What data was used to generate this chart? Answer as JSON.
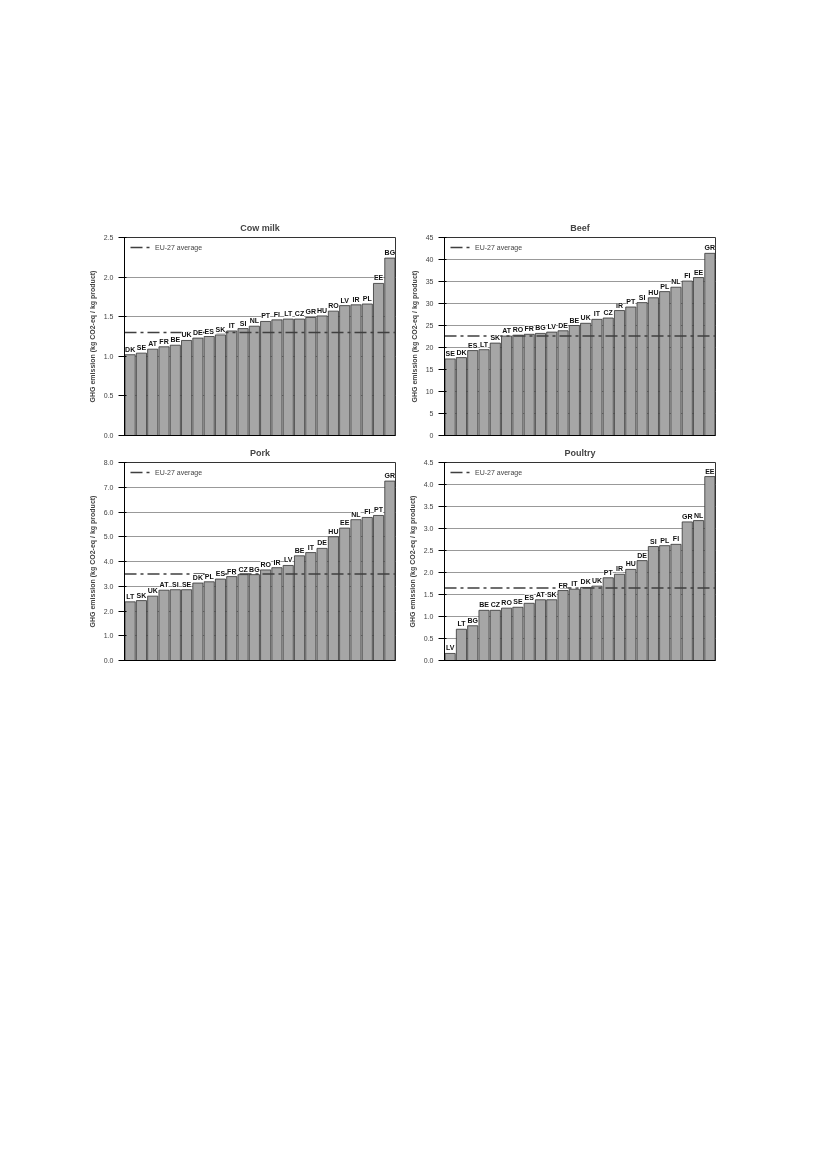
{
  "chart_data": [
    {
      "type": "bar",
      "title": "Cow milk",
      "ylabel": "GHG emission (kg CO2-eq / kg product)",
      "categories": [
        "DK",
        "SE",
        "AT",
        "FR",
        "BE",
        "UK",
        "DE",
        "ES",
        "SK",
        "IT",
        "SI",
        "NL",
        "PT",
        "FI",
        "LT",
        "CZ",
        "GR",
        "HU",
        "RO",
        "LV",
        "IR",
        "PL",
        "EE",
        "BG"
      ],
      "values": [
        1.02,
        1.04,
        1.09,
        1.12,
        1.14,
        1.2,
        1.23,
        1.25,
        1.27,
        1.32,
        1.35,
        1.38,
        1.44,
        1.46,
        1.47,
        1.47,
        1.49,
        1.51,
        1.57,
        1.64,
        1.65,
        1.66,
        1.92,
        2.24
      ],
      "color": "#a6a6a6",
      "ylim": [
        0,
        2.5
      ],
      "yticks": [
        {
          "value": 0,
          "label": "0.0"
        },
        0.5,
        {
          "value": 1,
          "label": "1.0"
        },
        1.5,
        {
          "value": 2,
          "label": "2.0"
        },
        2.5
      ],
      "ref_lines": [
        {
          "axis": "y",
          "value": 1.3,
          "label": "EU-27 average",
          "color": "#3f3f3f",
          "line_style": "dashed"
        }
      ],
      "grid": "y",
      "legend": "top left",
      "tick_labels": "y"
    },
    {
      "type": "bar",
      "title": "Beef",
      "ylabel": "GHG emission (kg CO2-eq / kg product)",
      "categories": [
        "SE",
        "DK",
        "ES",
        "LT",
        "SK",
        "AT",
        "RO",
        "FR",
        "BG",
        "LV",
        "DE",
        "BE",
        "UK",
        "IT",
        "CZ",
        "IR",
        "PT",
        "SI",
        "HU",
        "PL",
        "NL",
        "FI",
        "EE",
        "GR"
      ],
      "values": [
        17.4,
        17.7,
        19.3,
        19.5,
        21.0,
        22.6,
        22.8,
        23.0,
        23.2,
        23.5,
        23.8,
        25.0,
        25.5,
        26.4,
        26.7,
        28.4,
        29.2,
        30.2,
        31.3,
        32.7,
        33.7,
        35.1,
        35.9,
        41.4
      ],
      "color": "#a6a6a6",
      "ylim": [
        0,
        45
      ],
      "yticks": [
        0,
        5,
        10,
        15,
        20,
        25,
        30,
        35,
        40,
        45
      ],
      "ref_lines": [
        {
          "axis": "y",
          "value": 22.6,
          "label": "EU-27 average",
          "color": "#3f3f3f",
          "line_style": "dashed"
        }
      ],
      "grid": "y",
      "legend": "top left",
      "tick_labels": "y"
    },
    {
      "type": "bar",
      "title": "Pork",
      "ylabel": "GHG emission (kg CO2-eq / kg product)",
      "categories": [
        "LT",
        "SK",
        "UK",
        "AT",
        "SI",
        "SE",
        "DK",
        "PL",
        "ES",
        "FR",
        "CZ",
        "BG",
        "RO",
        "IR",
        "LV",
        "BE",
        "IT",
        "DE",
        "HU",
        "EE",
        "NL",
        "FI",
        "PT",
        "GR"
      ],
      "values": [
        2.37,
        2.42,
        2.6,
        2.84,
        2.86,
        2.86,
        3.13,
        3.18,
        3.29,
        3.39,
        3.47,
        3.47,
        3.66,
        3.75,
        3.84,
        4.23,
        4.36,
        4.53,
        5.0,
        5.35,
        5.69,
        5.78,
        5.86,
        7.25
      ],
      "color": "#a6a6a6",
      "ylim": [
        0,
        8
      ],
      "yticks": [
        {
          "value": 0,
          "label": "0.0"
        },
        {
          "value": 1,
          "label": "1.0"
        },
        {
          "value": 2,
          "label": "2.0"
        },
        {
          "value": 3,
          "label": "3.0"
        },
        {
          "value": 4,
          "label": "4.0"
        },
        {
          "value": 5,
          "label": "5.0"
        },
        {
          "value": 6,
          "label": "6.0"
        },
        {
          "value": 7,
          "label": "7.0"
        },
        {
          "value": 8,
          "label": "8.0"
        }
      ],
      "ref_lines": [
        {
          "axis": "y",
          "value": 3.5,
          "label": "EU-27 average",
          "color": "#3f3f3f",
          "line_style": "dashed"
        }
      ],
      "grid": "y",
      "legend": "top left",
      "tick_labels": "y"
    },
    {
      "type": "bar",
      "title": "Poultry",
      "ylabel": "GHG emission (kg CO2-eq / kg product)",
      "categories": [
        "LV",
        "LT",
        "BG",
        "BE",
        "CZ",
        "RO",
        "SE",
        "ES",
        "AT",
        "SK",
        "FR",
        "IT",
        "DK",
        "UK",
        "PT",
        "IR",
        "HU",
        "DE",
        "SI",
        "PL",
        "FI",
        "GR",
        "NL",
        "EE"
      ],
      "values": [
        0.16,
        0.71,
        0.79,
        1.14,
        1.14,
        1.19,
        1.21,
        1.3,
        1.38,
        1.38,
        1.59,
        1.62,
        1.66,
        1.69,
        1.88,
        1.96,
        2.07,
        2.27,
        2.59,
        2.61,
        2.64,
        3.15,
        3.18,
        4.18
      ],
      "color": "#a6a6a6",
      "ylim": [
        0,
        4.5
      ],
      "yticks": [
        {
          "value": 0,
          "label": "0.0"
        },
        0.5,
        {
          "value": 1,
          "label": "1.0"
        },
        1.5,
        {
          "value": 2,
          "label": "2.0"
        },
        2.5,
        {
          "value": 3,
          "label": "3.0"
        },
        3.5,
        {
          "value": 4,
          "label": "4.0"
        },
        4.5
      ],
      "ref_lines": [
        {
          "axis": "y",
          "value": 1.65,
          "label": "EU-27 average",
          "color": "#3f3f3f",
          "line_style": "dashed"
        }
      ],
      "grid": "y",
      "legend": "top left",
      "tick_labels": "y"
    }
  ]
}
